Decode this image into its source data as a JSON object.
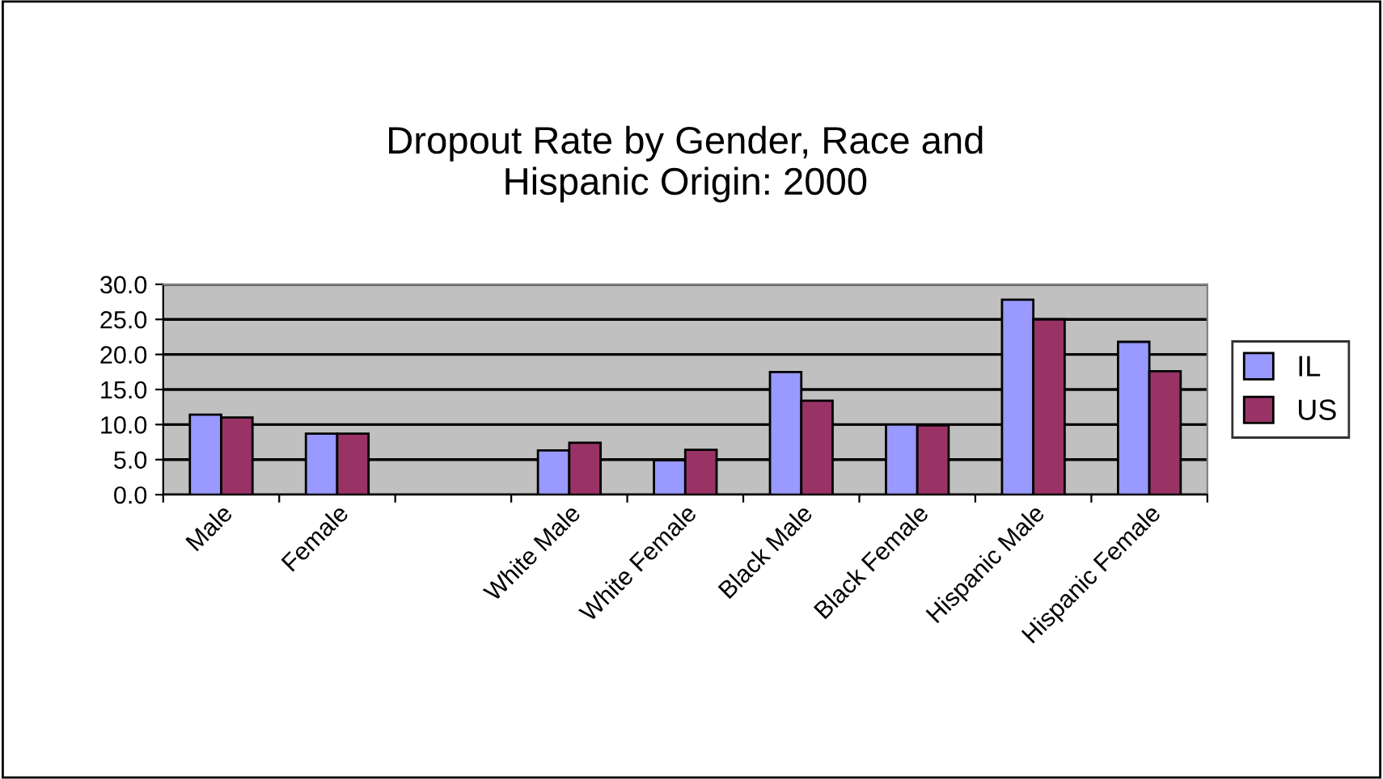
{
  "chart_data": {
    "type": "bar",
    "title": "Dropout Rate by Gender, Race and\nHispanic Origin: 2000",
    "categories": [
      "Male",
      "Female",
      null,
      "White Male",
      "White Female",
      "Black Male",
      "Black Female",
      "Hispanic Male",
      "Hispanic Female"
    ],
    "series": [
      {
        "name": "IL",
        "color": "#9999ff",
        "values": [
          11.4,
          8.7,
          null,
          6.3,
          4.9,
          17.5,
          10.0,
          27.8,
          21.8
        ]
      },
      {
        "name": "US",
        "color": "#993366",
        "values": [
          11.0,
          8.7,
          null,
          7.4,
          6.4,
          13.4,
          9.9,
          25.0,
          17.6
        ]
      }
    ],
    "ylim": [
      0,
      30
    ],
    "yticks": [
      {
        "value": 0,
        "label": "0.0"
      },
      {
        "value": 5,
        "label": "5.0"
      },
      {
        "value": 10,
        "label": "10.0"
      },
      {
        "value": 15,
        "label": "15.0"
      },
      {
        "value": 20,
        "label": "20.0"
      },
      {
        "value": 25,
        "label": "25.0"
      },
      {
        "value": 30,
        "label": "30.0"
      }
    ],
    "grid": "y",
    "legend": "right"
  }
}
